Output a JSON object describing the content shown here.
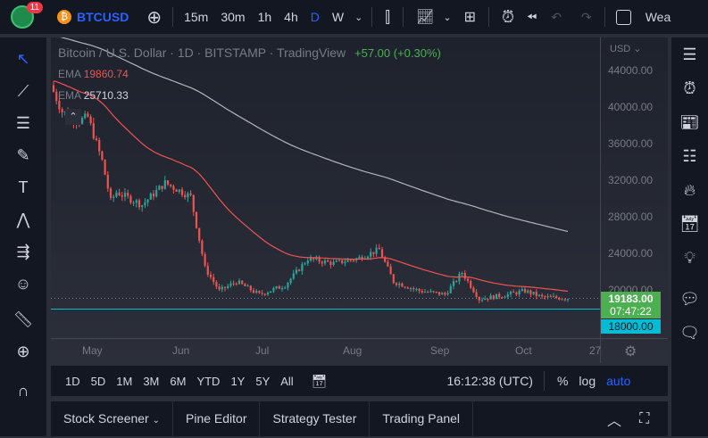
{
  "topbar": {
    "notif_count": "11",
    "symbol": "BTCUSD",
    "intervals": [
      "15m",
      "30m",
      "1h",
      "4h",
      "D",
      "W"
    ],
    "active_interval": "D",
    "watchlist_label": "Wea"
  },
  "legend": {
    "title": "Bitcoin / U.S. Dollar · 1D · BITSTAMP · TradingView",
    "change": "+57.00 (+0.30%)",
    "ema1_label": "EMA",
    "ema1_value": "19860.74",
    "ema2_label": "EMA",
    "ema2_value": "25710.33"
  },
  "price_axis": {
    "currency": "USD",
    "ticks": [
      "44000.00",
      "40000.00",
      "36000.00",
      "32000.00",
      "28000.00",
      "24000.00",
      "20000.00"
    ],
    "last_price": "19183.00",
    "countdown": "07:47:22",
    "line_price": "18000.00"
  },
  "time_axis": {
    "labels": [
      "May",
      "Jun",
      "Jul",
      "Aug",
      "Sep",
      "Oct",
      "27"
    ]
  },
  "bottom_bar": {
    "ranges": [
      "1D",
      "5D",
      "1M",
      "3M",
      "6M",
      "YTD",
      "1Y",
      "5Y",
      "All"
    ],
    "clock": "16:12:38 (UTC)",
    "percent": "%",
    "log": "log",
    "auto": "auto"
  },
  "tabs": [
    "Stock Screener",
    "Pine Editor",
    "Strategy Tester",
    "Trading Panel"
  ],
  "colors": {
    "up": "#26a69a",
    "down": "#ef5350",
    "accent": "#2962ff",
    "cyan": "#00bcd4",
    "green": "#4caf50"
  },
  "chart_data": {
    "type": "candlestick",
    "note": "approximate closes by day offset from May 1",
    "keypoints": [
      [
        -11,
        42500
      ],
      [
        -7,
        39600
      ],
      [
        -1,
        38600
      ],
      [
        2,
        39000
      ],
      [
        7,
        34200
      ],
      [
        10,
        29800
      ],
      [
        12,
        30800
      ],
      [
        21,
        29400
      ],
      [
        29,
        31800
      ],
      [
        38,
        30300
      ],
      [
        43,
        22500
      ],
      [
        48,
        20000
      ],
      [
        54,
        21000
      ],
      [
        62,
        19600
      ],
      [
        71,
        20600
      ],
      [
        79,
        23500
      ],
      [
        88,
        23000
      ],
      [
        96,
        23500
      ],
      [
        104,
        24500
      ],
      [
        109,
        21000
      ],
      [
        118,
        20000
      ],
      [
        127,
        19600
      ],
      [
        133,
        22000
      ],
      [
        139,
        19100
      ],
      [
        149,
        19600
      ],
      [
        155,
        20000
      ],
      [
        161,
        19300
      ],
      [
        170,
        19183
      ]
    ]
  }
}
